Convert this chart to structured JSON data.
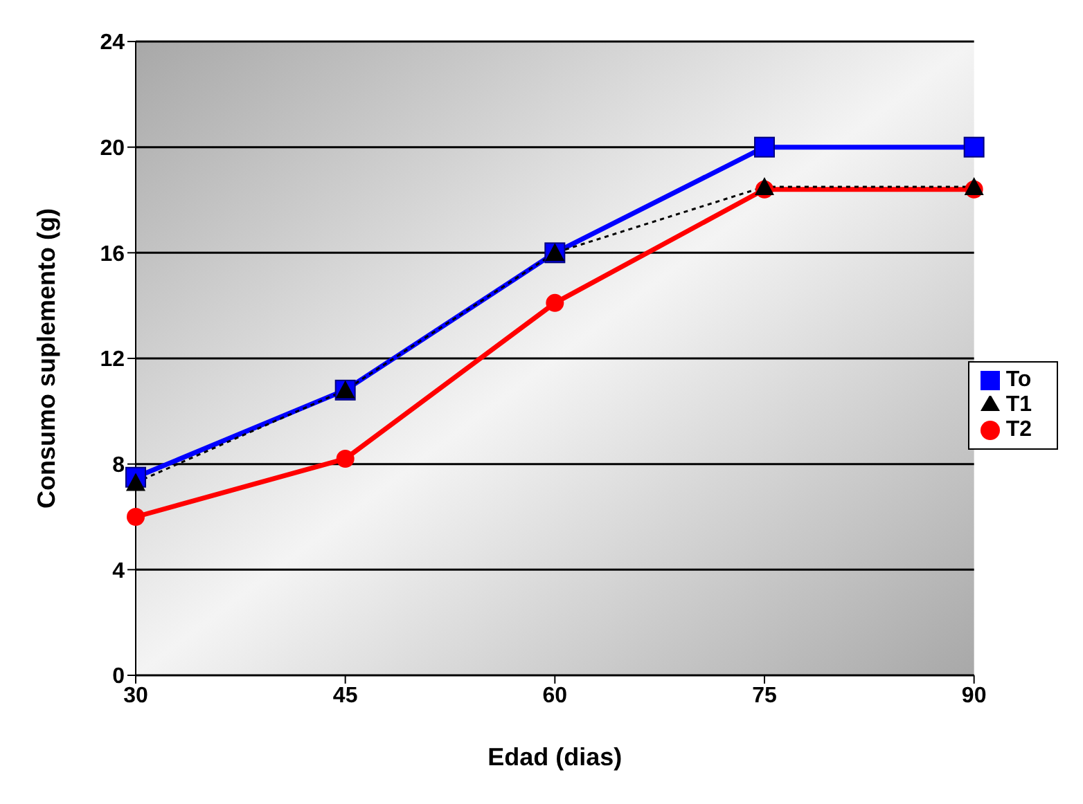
{
  "chart_data": {
    "type": "line",
    "xlabel": "Edad (dias)",
    "ylabel": "Consumo suplemento (g)",
    "categories": [
      "30",
      "45",
      "60",
      "75",
      "90"
    ],
    "series": [
      {
        "name": "To",
        "color": "#0000ff",
        "values": [
          7.5,
          10.8,
          16.0,
          20.0,
          20.0
        ],
        "marker": "square",
        "line_style": "solid"
      },
      {
        "name": "T1",
        "color": "#000000",
        "values": [
          7.3,
          10.8,
          16.0,
          18.5,
          18.5
        ],
        "marker": "triangle",
        "line_style": "dotted"
      },
      {
        "name": "T2",
        "color": "#ff0000",
        "values": [
          6.0,
          8.2,
          14.1,
          18.4,
          18.4
        ],
        "marker": "circle",
        "line_style": "solid"
      }
    ],
    "ylim": [
      0,
      24
    ],
    "yticks": [
      0,
      4,
      8,
      12,
      16,
      20,
      24
    ],
    "grid": "y",
    "legend": "right"
  }
}
